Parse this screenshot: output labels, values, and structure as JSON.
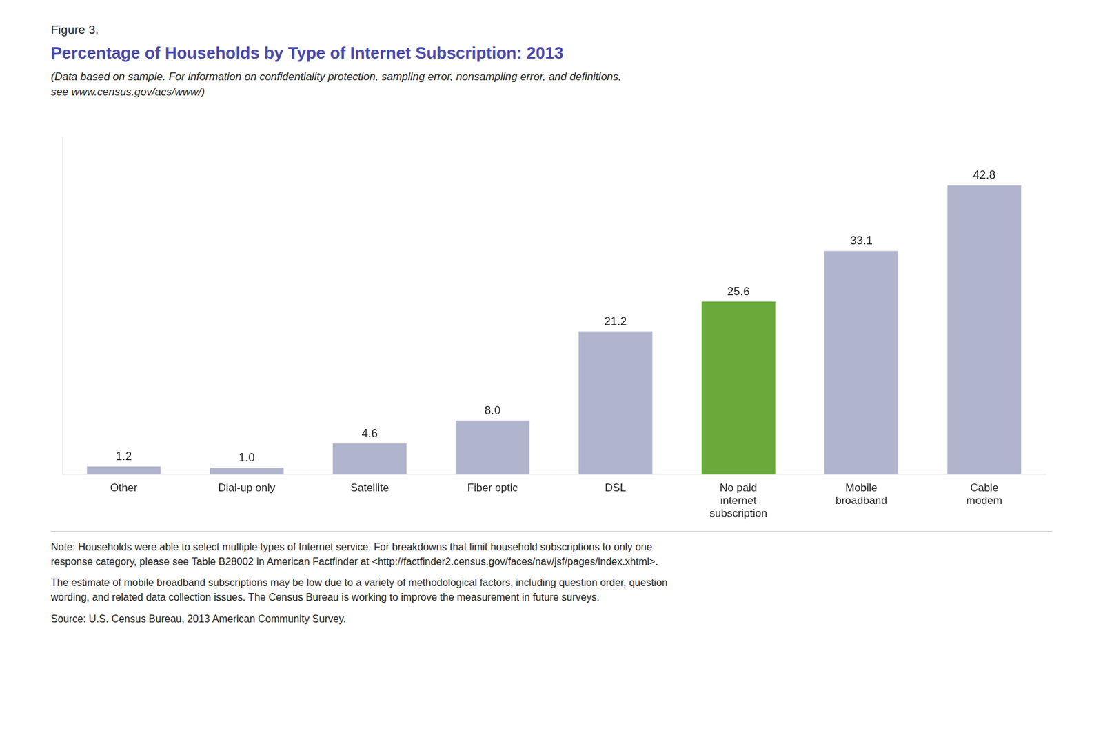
{
  "chart_data": {
    "type": "bar",
    "figure_label": "Figure 3.",
    "title": "Percentage of Households by Type of Internet Subscription: 2013",
    "subtitle": [
      "(Data based on sample. For information on confidentiality protection, sampling error, nonsampling error, and definitions,",
      "see www.census.gov/acs/www/)"
    ],
    "notes": [
      "Note: Households were able to select multiple types of Internet service. For breakdowns that limit household subscriptions to only one",
      "response category, please see Table B28002 in American Factfinder at <http://factfinder2.census.gov/faces/nav/jsf/pages/index.xhtml>.",
      "The estimate of mobile broadband subscriptions may be low due to a variety of methodological factors, including question order, question",
      "wording, and related data collection issues. The Census Bureau is working to improve the measurement in future surveys."
    ],
    "source": "Source: U.S. Census Bureau, 2013 American Community Survey.",
    "categories": [
      "Other",
      "Dial-up only",
      "Satellite",
      "Fiber optic",
      "DSL",
      "No paid\ninternet\nsubscription",
      "Mobile\nbroadband",
      "Cable\nmodem"
    ],
    "values": [
      1.2,
      1.0,
      4.6,
      8.0,
      21.2,
      25.6,
      33.1,
      42.8
    ],
    "value_labels": [
      "1.2",
      "1.0",
      "4.6",
      "8.0",
      "21.2",
      "25.6",
      "33.1",
      "42.8"
    ],
    "colors": [
      "#b0b4cc",
      "#b0b4cc",
      "#b0b4cc",
      "#b0b4cc",
      "#b0b4cc",
      "#6aaa3a",
      "#b0b4cc",
      "#b0b4cc"
    ],
    "ylim": [
      0,
      50
    ],
    "grid": false,
    "data_labels": true,
    "tick_labels": "x"
  }
}
